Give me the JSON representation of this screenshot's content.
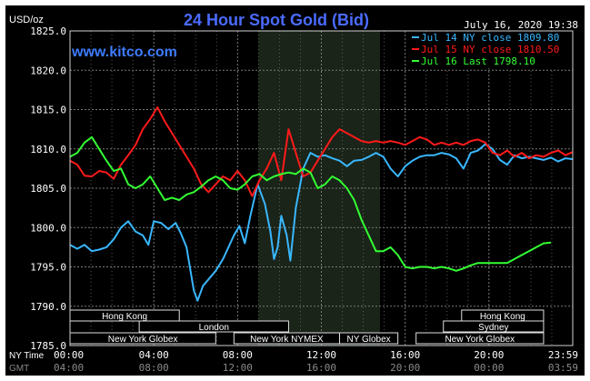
{
  "header": {
    "units": "USD/oz",
    "title": "24 Hour Spot Gold (Bid)",
    "date": "July 16, 2020 19:38",
    "site": "www.kitco.com"
  },
  "colors": {
    "background": "#000000",
    "plot_bg": "#000000",
    "shade": "#1a2418",
    "grid": "#7a7a7a",
    "title": "#4b6bff",
    "site": "#3c7cff",
    "jul14": "#39b7ff",
    "jul15": "#ff1a1a",
    "jul16": "#33ff33",
    "session_text": "#ffffff"
  },
  "chart_data": {
    "type": "line",
    "title": "24 Hour Spot Gold (Bid)",
    "ylabel": "USD/oz",
    "xlabel": "",
    "ylim": [
      1785.0,
      1825.0
    ],
    "xlim_hours_ny": [
      0,
      24
    ],
    "y_ticks": [
      "1825.0",
      "1820.0",
      "1815.0",
      "1810.0",
      "1805.0",
      "1800.0",
      "1795.0",
      "1790.0",
      "1785.0"
    ],
    "x_axis_ny": {
      "label": "NY Time",
      "ticks": [
        "00:00",
        "04:00",
        "08:00",
        "12:00",
        "16:00",
        "20:00",
        "23:59"
      ]
    },
    "x_axis_gmt": {
      "label": "GMT",
      "ticks": [
        "04:00",
        "08:00",
        "12:00",
        "16:00",
        "20:00",
        "00:00",
        "03:59"
      ]
    },
    "grid": true,
    "legend_position": "top-right",
    "nymex_shade_hours": [
      9.0,
      14.8
    ],
    "sessions": [
      {
        "label": "Hong Kong",
        "row": 1,
        "start": 0.0,
        "end": 6.0
      },
      {
        "label": "Hong Kong",
        "row": 1,
        "start": 21.5,
        "end": 26.0
      },
      {
        "label": "London",
        "row": 2,
        "start": 3.8,
        "end": 12.0
      },
      {
        "label": "Sydney",
        "row": 2,
        "start": 20.5,
        "end": 26.0
      },
      {
        "label": "New York Globex",
        "row": 3,
        "start": 0.0,
        "end": 8.0
      },
      {
        "label": "New York NYMEX",
        "row": 3,
        "start": 9.0,
        "end": 14.8
      },
      {
        "label": "NY Globex",
        "row": 3,
        "start": 14.8,
        "end": 18.0
      },
      {
        "label": "New York Globex",
        "row": 3,
        "start": 19.0,
        "end": 26.0
      }
    ],
    "series": [
      {
        "name": "Jul 14 NY close 1809.80",
        "color_key": "jul14",
        "points": [
          [
            0,
            1797.8
          ],
          [
            0.4,
            1797.3
          ],
          [
            0.8,
            1797.8
          ],
          [
            1.2,
            1797.0
          ],
          [
            1.6,
            1797.2
          ],
          [
            2.0,
            1797.5
          ],
          [
            2.4,
            1798.5
          ],
          [
            2.8,
            1800.0
          ],
          [
            3.2,
            1800.8
          ],
          [
            3.6,
            1799.5
          ],
          [
            4.0,
            1799.0
          ],
          [
            4.3,
            1797.8
          ],
          [
            4.6,
            1800.8
          ],
          [
            5.0,
            1800.6
          ],
          [
            5.4,
            1799.8
          ],
          [
            5.8,
            1800.6
          ],
          [
            6.1,
            1799.2
          ],
          [
            6.4,
            1797.5
          ],
          [
            6.8,
            1792.0
          ],
          [
            7.0,
            1790.7
          ],
          [
            7.3,
            1792.6
          ],
          [
            7.6,
            1793.4
          ],
          [
            8.0,
            1794.5
          ],
          [
            8.4,
            1796.0
          ],
          [
            8.7,
            1797.5
          ],
          [
            9.0,
            1799.0
          ],
          [
            9.3,
            1800.2
          ],
          [
            9.6,
            1798.0
          ],
          [
            9.9,
            1801.5
          ],
          [
            10.3,
            1805.5
          ],
          [
            10.7,
            1803.0
          ],
          [
            11.0,
            1799.5
          ],
          [
            11.2,
            1796.0
          ],
          [
            11.4,
            1797.5
          ],
          [
            11.6,
            1801.5
          ],
          [
            11.9,
            1799.0
          ],
          [
            12.1,
            1795.8
          ],
          [
            12.4,
            1802.5
          ],
          [
            12.8,
            1807.5
          ],
          [
            13.2,
            1809.5
          ],
          [
            13.6,
            1809.0
          ],
          [
            14.0,
            1809.2
          ],
          [
            14.4,
            1808.8
          ],
          [
            14.8,
            1808.5
          ],
          [
            15.2,
            1807.8
          ],
          [
            15.6,
            1808.5
          ],
          [
            16.0,
            1808.6
          ],
          [
            16.4,
            1809.0
          ],
          [
            16.8,
            1809.5
          ],
          [
            17.2,
            1809.0
          ],
          [
            17.6,
            1807.5
          ],
          [
            18.0,
            1806.5
          ],
          [
            18.4,
            1807.8
          ],
          [
            18.8,
            1808.5
          ],
          [
            19.2,
            1809.0
          ],
          [
            19.6,
            1809.2
          ],
          [
            20.0,
            1809.2
          ],
          [
            20.4,
            1809.5
          ],
          [
            20.8,
            1809.3
          ],
          [
            21.2,
            1808.8
          ],
          [
            21.6,
            1807.5
          ],
          [
            22.0,
            1809.5
          ],
          [
            22.4,
            1809.8
          ],
          [
            22.8,
            1810.6
          ],
          [
            23.2,
            1810.0
          ],
          [
            23.6,
            1808.6
          ],
          [
            24.0,
            1808.0
          ],
          [
            24.4,
            1809.2
          ],
          [
            24.8,
            1808.8
          ],
          [
            25.2,
            1809.0
          ],
          [
            25.6,
            1808.8
          ],
          [
            26.0,
            1808.6
          ],
          [
            26.4,
            1808.9
          ],
          [
            26.8,
            1808.4
          ],
          [
            27.2,
            1808.8
          ],
          [
            27.6,
            1808.7
          ]
        ]
      },
      {
        "name": "Jul 15 NY close 1810.50",
        "color_key": "jul15",
        "points": [
          [
            0,
            1808.5
          ],
          [
            0.4,
            1808.0
          ],
          [
            0.8,
            1806.6
          ],
          [
            1.2,
            1806.5
          ],
          [
            1.6,
            1807.2
          ],
          [
            2.0,
            1807.0
          ],
          [
            2.4,
            1806.2
          ],
          [
            2.8,
            1808.0
          ],
          [
            3.2,
            1809.2
          ],
          [
            3.6,
            1810.5
          ],
          [
            4.0,
            1812.5
          ],
          [
            4.4,
            1813.8
          ],
          [
            4.8,
            1815.3
          ],
          [
            5.2,
            1813.5
          ],
          [
            5.6,
            1812.0
          ],
          [
            6.0,
            1810.5
          ],
          [
            6.4,
            1809.0
          ],
          [
            6.8,
            1807.5
          ],
          [
            7.2,
            1805.5
          ],
          [
            7.6,
            1804.5
          ],
          [
            8.0,
            1805.5
          ],
          [
            8.4,
            1806.5
          ],
          [
            8.8,
            1806.0
          ],
          [
            9.2,
            1807.2
          ],
          [
            9.6,
            1806.0
          ],
          [
            10.0,
            1804.0
          ],
          [
            10.4,
            1806.0
          ],
          [
            10.8,
            1807.5
          ],
          [
            11.2,
            1809.5
          ],
          [
            11.6,
            1806.0
          ],
          [
            12.0,
            1812.5
          ],
          [
            12.4,
            1809.5
          ],
          [
            12.8,
            1806.5
          ],
          [
            13.2,
            1807.0
          ],
          [
            13.6,
            1808.5
          ],
          [
            14.0,
            1810.0
          ],
          [
            14.4,
            1811.5
          ],
          [
            14.8,
            1812.5
          ],
          [
            15.2,
            1812.0
          ],
          [
            15.6,
            1811.5
          ],
          [
            16.0,
            1811.0
          ],
          [
            16.4,
            1810.8
          ],
          [
            16.8,
            1811.0
          ],
          [
            17.2,
            1810.8
          ],
          [
            17.6,
            1811.0
          ],
          [
            18.0,
            1810.8
          ],
          [
            18.4,
            1810.5
          ],
          [
            18.8,
            1811.0
          ],
          [
            19.2,
            1811.5
          ],
          [
            19.6,
            1811.2
          ],
          [
            20.0,
            1810.5
          ],
          [
            20.4,
            1810.8
          ],
          [
            20.8,
            1810.5
          ],
          [
            21.2,
            1810.8
          ],
          [
            21.6,
            1810.5
          ],
          [
            22.0,
            1811.0
          ],
          [
            22.4,
            1811.2
          ],
          [
            22.8,
            1810.8
          ],
          [
            23.2,
            1809.5
          ],
          [
            23.6,
            1809.2
          ],
          [
            24.0,
            1809.8
          ],
          [
            24.4,
            1809.0
          ],
          [
            24.8,
            1809.5
          ],
          [
            25.2,
            1808.8
          ],
          [
            25.6,
            1809.2
          ],
          [
            26.0,
            1809.0
          ],
          [
            26.4,
            1809.5
          ],
          [
            26.8,
            1809.8
          ],
          [
            27.2,
            1809.2
          ],
          [
            27.6,
            1809.6
          ]
        ]
      },
      {
        "name": "Jul 16 Last 1798.10",
        "color_key": "jul16",
        "points": [
          [
            0,
            1809.0
          ],
          [
            0.4,
            1809.5
          ],
          [
            0.8,
            1810.8
          ],
          [
            1.2,
            1811.5
          ],
          [
            1.6,
            1810.0
          ],
          [
            2.0,
            1808.5
          ],
          [
            2.4,
            1807.2
          ],
          [
            2.8,
            1807.5
          ],
          [
            3.2,
            1805.5
          ],
          [
            3.6,
            1805.0
          ],
          [
            4.0,
            1805.5
          ],
          [
            4.4,
            1806.5
          ],
          [
            4.8,
            1805.0
          ],
          [
            5.2,
            1803.5
          ],
          [
            5.6,
            1803.8
          ],
          [
            6.0,
            1803.5
          ],
          [
            6.4,
            1804.2
          ],
          [
            6.8,
            1804.5
          ],
          [
            7.2,
            1805.2
          ],
          [
            7.6,
            1806.0
          ],
          [
            8.0,
            1806.5
          ],
          [
            8.4,
            1806.0
          ],
          [
            8.8,
            1805.0
          ],
          [
            9.2,
            1804.8
          ],
          [
            9.6,
            1805.5
          ],
          [
            10.0,
            1806.5
          ],
          [
            10.4,
            1806.8
          ],
          [
            10.8,
            1806.0
          ],
          [
            11.2,
            1806.5
          ],
          [
            11.6,
            1806.8
          ],
          [
            12.0,
            1807.0
          ],
          [
            12.4,
            1806.8
          ],
          [
            12.8,
            1807.5
          ],
          [
            13.2,
            1807.0
          ],
          [
            13.6,
            1805.0
          ],
          [
            14.0,
            1805.5
          ],
          [
            14.4,
            1806.5
          ],
          [
            14.8,
            1806.0
          ],
          [
            15.2,
            1805.0
          ],
          [
            15.6,
            1803.5
          ],
          [
            16.0,
            1801.0
          ],
          [
            16.4,
            1799.0
          ],
          [
            16.8,
            1797.0
          ],
          [
            17.2,
            1797.0
          ],
          [
            17.6,
            1797.5
          ],
          [
            18.0,
            1796.5
          ],
          [
            18.4,
            1795.0
          ],
          [
            18.8,
            1794.8
          ],
          [
            19.2,
            1795.0
          ],
          [
            19.6,
            1795.0
          ],
          [
            20.0,
            1794.8
          ],
          [
            20.4,
            1795.0
          ],
          [
            20.8,
            1794.8
          ],
          [
            21.2,
            1794.5
          ],
          [
            21.6,
            1794.8
          ],
          [
            22.0,
            1795.2
          ],
          [
            22.4,
            1795.5
          ],
          [
            22.8,
            1795.5
          ],
          [
            23.2,
            1795.5
          ],
          [
            23.6,
            1795.5
          ],
          [
            24.0,
            1795.5
          ],
          [
            24.4,
            1796.0
          ],
          [
            24.8,
            1796.5
          ],
          [
            25.2,
            1797.0
          ],
          [
            25.6,
            1797.5
          ],
          [
            26.0,
            1798.0
          ],
          [
            26.4,
            1798.1
          ]
        ]
      }
    ]
  }
}
